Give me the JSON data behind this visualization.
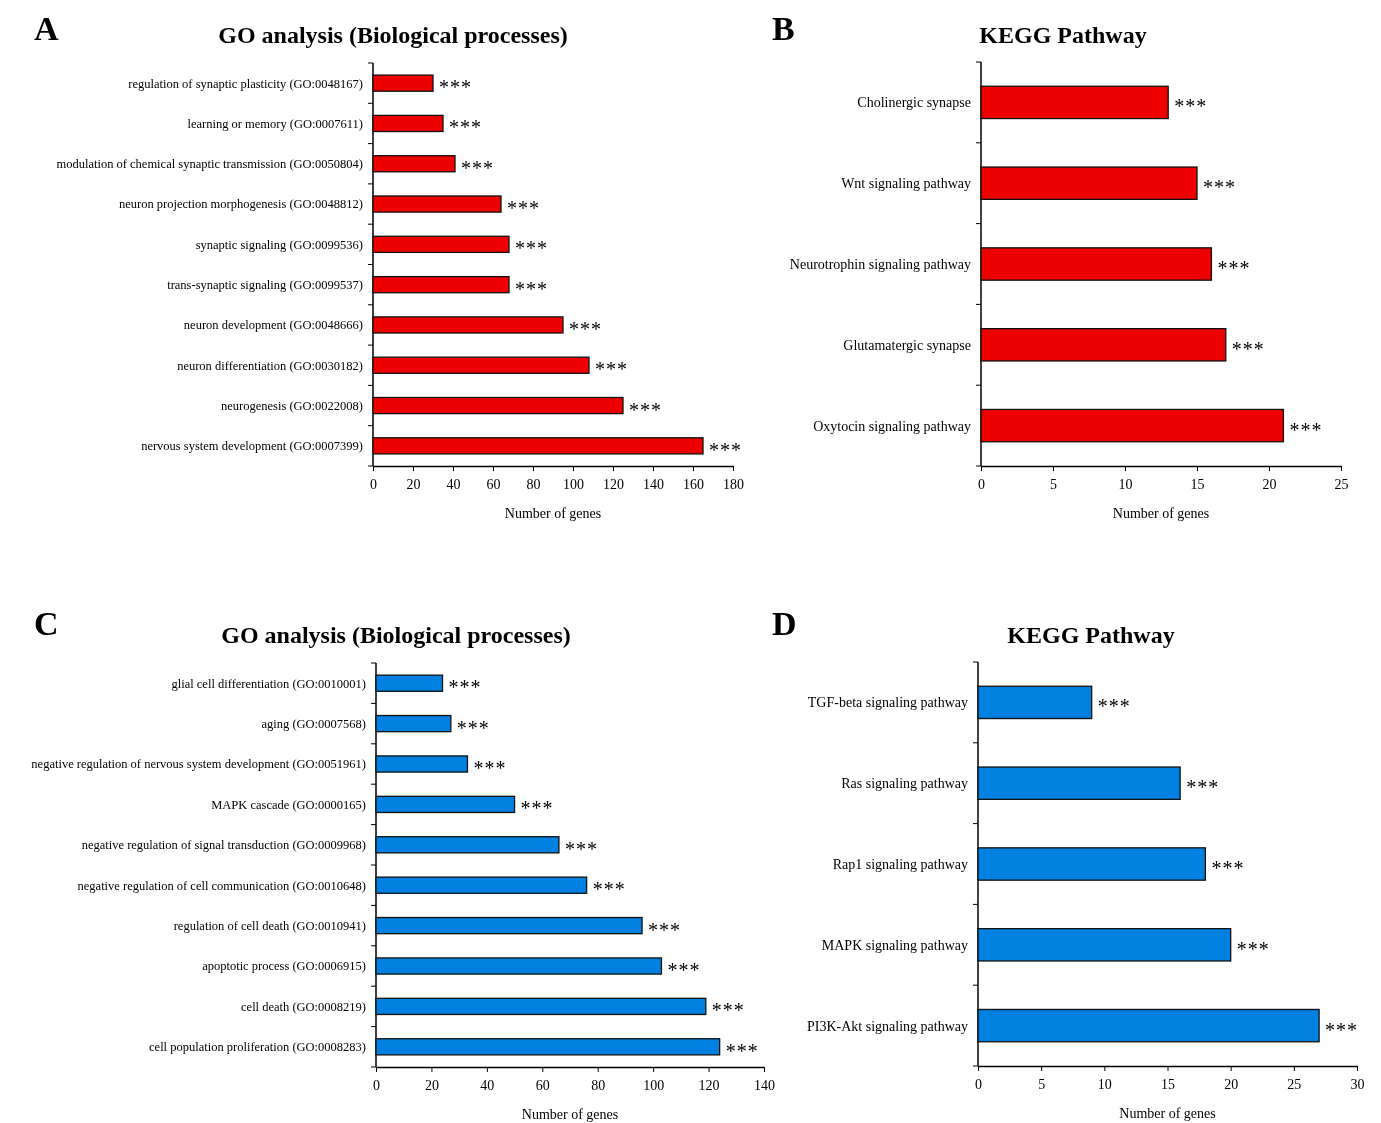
{
  "chart_data": [
    {
      "type": "bar",
      "orientation": "horizontal",
      "title": "GO analysis (Biological processes)",
      "xlabel": "Number of genes",
      "annotations": [
        "A"
      ],
      "categories": [
        "regulation of synaptic plasticity (GO:0048167)",
        "learning or memory (GO:0007611)",
        "modulation of chemical synaptic transmission (GO:0050804)",
        "neuron projection morphogenesis (GO:0048812)",
        "synaptic signaling (GO:0099536)",
        "trans-synaptic signaling (GO:0099537)",
        "neuron development (GO:0048666)",
        "neuron differentiation (GO:0030182)",
        "neurogenesis (GO:0022008)",
        "nervous system development (GO:0007399)"
      ],
      "values": [
        30,
        35,
        41,
        64,
        68,
        68,
        95,
        108,
        125,
        165
      ],
      "color": "#ee0000",
      "value_labels": [
        "***",
        "***",
        "***",
        "***",
        "***",
        "***",
        "***",
        "***",
        "***",
        "***"
      ],
      "xlim": [
        0,
        180
      ],
      "xticks": [
        0,
        20,
        40,
        60,
        80,
        100,
        120,
        140,
        160,
        180
      ]
    },
    {
      "type": "bar",
      "orientation": "horizontal",
      "title": "KEGG Pathway",
      "xlabel": "Number of genes",
      "annotations": [
        "B"
      ],
      "categories": [
        "Cholinergic synapse",
        "Wnt signaling pathway",
        "Neurotrophin signaling pathway",
        "Glutamatergic synapse",
        "Oxytocin signaling pathway"
      ],
      "values": [
        13,
        15,
        16,
        17,
        21
      ],
      "color": "#ee0000",
      "value_labels": [
        "***",
        "***",
        "***",
        "***",
        "***"
      ],
      "xlim": [
        0,
        25
      ],
      "xticks": [
        0,
        5,
        10,
        15,
        20,
        25
      ]
    },
    {
      "type": "bar",
      "orientation": "horizontal",
      "title": "GO analysis (Biological processes)",
      "xlabel": "Number of genes",
      "annotations": [
        "C"
      ],
      "categories": [
        "glial cell differentiation (GO:0010001)",
        "aging (GO:0007568)",
        "negative regulation of nervous system development (GO:0051961)",
        "MAPK cascade (GO:0000165)",
        "negative regulation of signal transduction (GO:0009968)",
        "negative regulation of cell communication (GO:0010648)",
        "regulation of cell death (GO:0010941)",
        "apoptotic process (GO:0006915)",
        "cell death (GO:0008219)",
        "cell population proliferation (GO:0008283)"
      ],
      "values": [
        24,
        27,
        33,
        50,
        66,
        76,
        96,
        103,
        119,
        124
      ],
      "color": "#0080e0",
      "value_labels": [
        "***",
        "***",
        "***",
        "***",
        "***",
        "***",
        "***",
        "***",
        "***",
        "***"
      ],
      "xlim": [
        0,
        140
      ],
      "xticks": [
        0,
        20,
        40,
        60,
        80,
        100,
        120,
        140
      ]
    },
    {
      "type": "bar",
      "orientation": "horizontal",
      "title": "KEGG Pathway",
      "xlabel": "Number of genes",
      "annotations": [
        "D"
      ],
      "categories": [
        "TGF-beta signaling pathway",
        "Ras signaling pathway",
        "Rap1 signaling pathway",
        "MAPK signaling pathway",
        "PI3K-Akt signaling pathway"
      ],
      "values": [
        9,
        16,
        18,
        20,
        27
      ],
      "color": "#0080e0",
      "value_labels": [
        "***",
        "***",
        "***",
        "***",
        "***"
      ],
      "xlim": [
        0,
        30
      ],
      "xticks": [
        0,
        5,
        10,
        15,
        20,
        25,
        30
      ]
    }
  ]
}
